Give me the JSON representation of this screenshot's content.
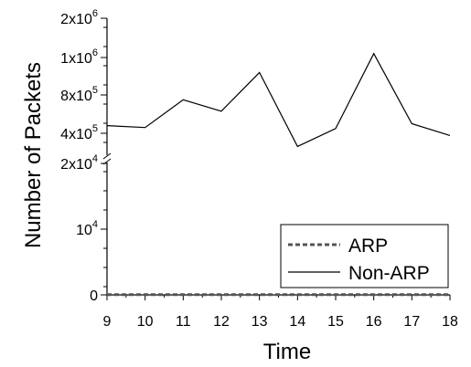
{
  "chart_data": {
    "type": "line",
    "xlabel": "Time",
    "ylabel": "Number of Packets",
    "x": [
      9,
      10,
      11,
      12,
      13,
      14,
      15,
      16,
      17,
      18
    ],
    "xlim": [
      9,
      18
    ],
    "axis_break": true,
    "upper_ylim": [
      300000,
      2000000
    ],
    "lower_ylim": [
      -1000,
      20000
    ],
    "y_ticks": [
      {
        "value": 0,
        "label": "0",
        "exp": ""
      },
      {
        "value": 10000,
        "label": "10",
        "exp": "4"
      },
      {
        "value": 20000,
        "label": "2x10",
        "exp": "4"
      },
      {
        "value": 400000,
        "label": "4x10",
        "exp": "5"
      },
      {
        "value": 800000,
        "label": "8x10",
        "exp": "5"
      },
      {
        "value": 1000000,
        "label": "1x10",
        "exp": "6"
      },
      {
        "value": 2000000,
        "label": "2x10",
        "exp": "6"
      }
    ],
    "series": [
      {
        "name": "ARP",
        "style": "dashed",
        "color": "#555555",
        "values": [
          30,
          30,
          30,
          30,
          30,
          30,
          30,
          30,
          30,
          30
        ]
      },
      {
        "name": "Non-ARP",
        "style": "solid",
        "color": "#000000",
        "values": [
          480000,
          460000,
          750000,
          630000,
          920000,
          340000,
          450000,
          1100000,
          500000,
          390000
        ]
      }
    ],
    "legend_position": "bottom-right"
  }
}
